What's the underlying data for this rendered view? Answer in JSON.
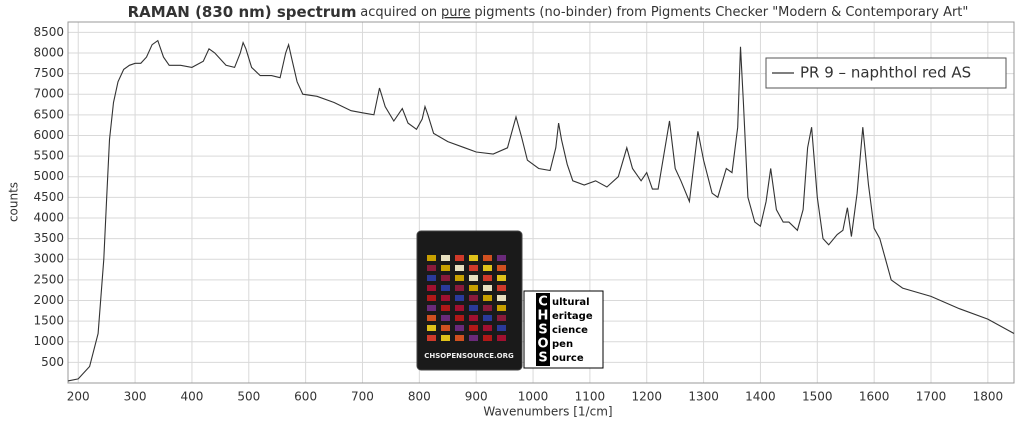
{
  "chart_data": {
    "type": "line",
    "title": "RAMAN (830 nm) spectrum",
    "subtitle": [
      "acquired on",
      "pure",
      "pigments (no-binder) from Pigments Checker \"Modern & Contemporary Art\""
    ],
    "x_label": "Wavenumbers [1/cm]",
    "y_label": "counts",
    "xlim": [
      182,
      1846
    ],
    "ylim": [
      0,
      8750
    ],
    "xticks": [
      200,
      300,
      400,
      500,
      600,
      700,
      800,
      900,
      1000,
      1100,
      1200,
      1300,
      1400,
      1500,
      1600,
      1700,
      1800
    ],
    "yticks": [
      500,
      1000,
      1500,
      2000,
      2500,
      3000,
      3500,
      4000,
      4500,
      5000,
      5500,
      6000,
      6500,
      7000,
      7500,
      8000,
      8500
    ],
    "grid": true,
    "legend": "upper right",
    "x": [
      182,
      200,
      220,
      235,
      245,
      250,
      255,
      262,
      270,
      280,
      290,
      300,
      310,
      320,
      330,
      340,
      350,
      360,
      380,
      400,
      420,
      430,
      440,
      460,
      475,
      485,
      490,
      495,
      505,
      520,
      540,
      555,
      565,
      570,
      575,
      585,
      595,
      620,
      650,
      680,
      700,
      720,
      730,
      740,
      755,
      770,
      780,
      795,
      805,
      810,
      815,
      825,
      850,
      880,
      900,
      930,
      955,
      970,
      980,
      990,
      1010,
      1030,
      1040,
      1045,
      1050,
      1060,
      1070,
      1090,
      1110,
      1130,
      1150,
      1165,
      1175,
      1190,
      1200,
      1210,
      1220,
      1240,
      1250,
      1260,
      1275,
      1290,
      1300,
      1315,
      1325,
      1340,
      1350,
      1360,
      1365,
      1370,
      1378,
      1390,
      1400,
      1410,
      1418,
      1428,
      1440,
      1450,
      1465,
      1475,
      1483,
      1490,
      1500,
      1510,
      1520,
      1535,
      1545,
      1553,
      1560,
      1570,
      1580,
      1590,
      1600,
      1610,
      1620,
      1630,
      1650,
      1700,
      1750,
      1800,
      1846
    ],
    "series": [
      {
        "name": "PR 9 – naphthol red AS",
        "color": "#333333",
        "values": [
          50,
          100,
          400,
          1200,
          3000,
          4500,
          5900,
          6800,
          7300,
          7600,
          7700,
          7750,
          7750,
          7900,
          8200,
          8300,
          7900,
          7700,
          7700,
          7650,
          7800,
          8100,
          8000,
          7700,
          7650,
          8000,
          8250,
          8100,
          7650,
          7450,
          7450,
          7400,
          8000,
          8200,
          7900,
          7300,
          7000,
          6950,
          6800,
          6600,
          6550,
          6500,
          7150,
          6700,
          6350,
          6650,
          6300,
          6150,
          6400,
          6700,
          6500,
          6050,
          5850,
          5700,
          5600,
          5550,
          5700,
          6450,
          5950,
          5400,
          5200,
          5150,
          5700,
          6300,
          5900,
          5300,
          4900,
          4800,
          4900,
          4750,
          5000,
          5700,
          5200,
          4900,
          5100,
          4700,
          4700,
          6350,
          5200,
          4900,
          4400,
          6100,
          5400,
          4600,
          4500,
          5200,
          5100,
          6200,
          8150,
          6800,
          4500,
          3900,
          3800,
          4400,
          5200,
          4200,
          3900,
          3900,
          3700,
          4200,
          5700,
          6200,
          4500,
          3500,
          3350,
          3600,
          3700,
          4250,
          3550,
          4600,
          6200,
          4800,
          3750,
          3500,
          3000,
          2500,
          2300,
          2100,
          1800,
          1550,
          1200
        ]
      }
    ]
  },
  "inset": {
    "label": "CHSOPENSOURCE.ORG",
    "letters": [
      "C",
      "H",
      "S",
      "O",
      "S"
    ],
    "words": [
      "ultural",
      "eritage",
      "cience",
      "pen",
      "ource"
    ]
  }
}
